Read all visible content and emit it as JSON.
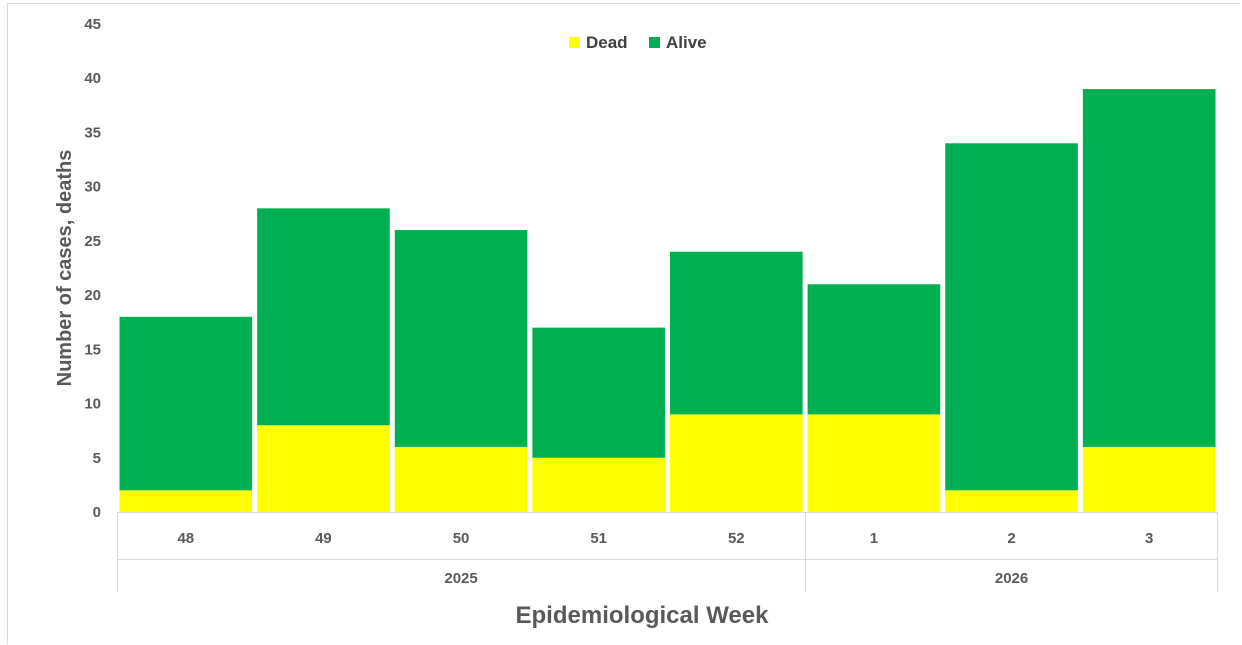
{
  "chart_data": {
    "type": "bar",
    "stacked": true,
    "categories": [
      "48",
      "49",
      "50",
      "51",
      "52",
      "1",
      "2",
      "3"
    ],
    "groups": [
      {
        "label": "2025",
        "categories": [
          "48",
          "49",
          "50",
          "51",
          "52"
        ]
      },
      {
        "label": "2026",
        "categories": [
          "1",
          "2",
          "3"
        ]
      }
    ],
    "series": [
      {
        "name": "Dead",
        "color": "#ffff00",
        "values": [
          2,
          8,
          6,
          5,
          9,
          9,
          2,
          6
        ]
      },
      {
        "name": "Alive",
        "color": "#00b050",
        "values": [
          16,
          20,
          20,
          12,
          15,
          12,
          32,
          33
        ]
      }
    ],
    "xlabel": "Epidemiological Week",
    "ylabel": "Number of cases, deaths",
    "ylim": [
      0,
      45
    ],
    "yticks": [
      0,
      5,
      10,
      15,
      20,
      25,
      30,
      35,
      40,
      45
    ],
    "grid": false,
    "legend": "top-center"
  }
}
